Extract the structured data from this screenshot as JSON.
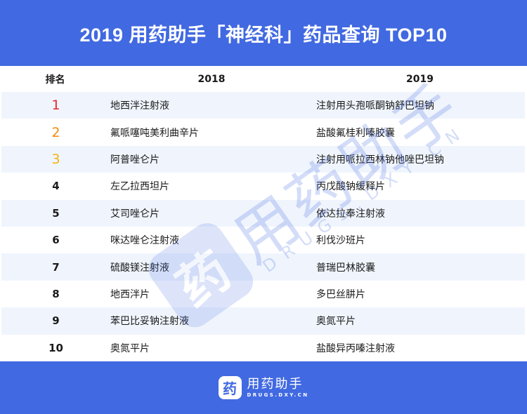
{
  "header": {
    "title": "2019 用药助手「神经科」药品查询 TOP10"
  },
  "table": {
    "columns": [
      "排名",
      "2018",
      "2019"
    ],
    "rows": [
      {
        "rank": "1",
        "y2018": "地西泮注射液",
        "y2019": "注射用头孢哌酮钠舒巴坦钠"
      },
      {
        "rank": "2",
        "y2018": "氟哌噻吨美利曲辛片",
        "y2019": "盐酸氟桂利嗪胶囊"
      },
      {
        "rank": "3",
        "y2018": "阿普唑仑片",
        "y2019": "注射用哌拉西林钠他唑巴坦钠"
      },
      {
        "rank": "4",
        "y2018": "左乙拉西坦片",
        "y2019": "丙戊酸钠缓释片"
      },
      {
        "rank": "5",
        "y2018": "艾司唑仑片",
        "y2019": "依达拉奉注射液"
      },
      {
        "rank": "6",
        "y2018": "咪达唑仑注射液",
        "y2019": "利伐沙班片"
      },
      {
        "rank": "7",
        "y2018": "硫酸镁注射液",
        "y2019": "普瑞巴林胶囊"
      },
      {
        "rank": "8",
        "y2018": "地西泮片",
        "y2019": "多巴丝肼片"
      },
      {
        "rank": "9",
        "y2018": "苯巴比妥钠注射液",
        "y2019": "奥氮平片"
      },
      {
        "rank": "10",
        "y2018": "奥氮平片",
        "y2019": "盐酸异丙嗪注射液"
      }
    ]
  },
  "colors": {
    "brand": "#4169e1",
    "stripe": "#f0f5fd",
    "rank1": "#e8282b",
    "rank2": "#f58a0b",
    "rank3": "#f5b311",
    "text": "#1a1a1a"
  },
  "footer": {
    "logo_icon": "药",
    "logo_name": "用药助手",
    "logo_url": "DRUGS.DXY.CN"
  },
  "watermark": {
    "icon": "药",
    "name": "用药助手",
    "url": "DRUGS.DXY.CN"
  }
}
